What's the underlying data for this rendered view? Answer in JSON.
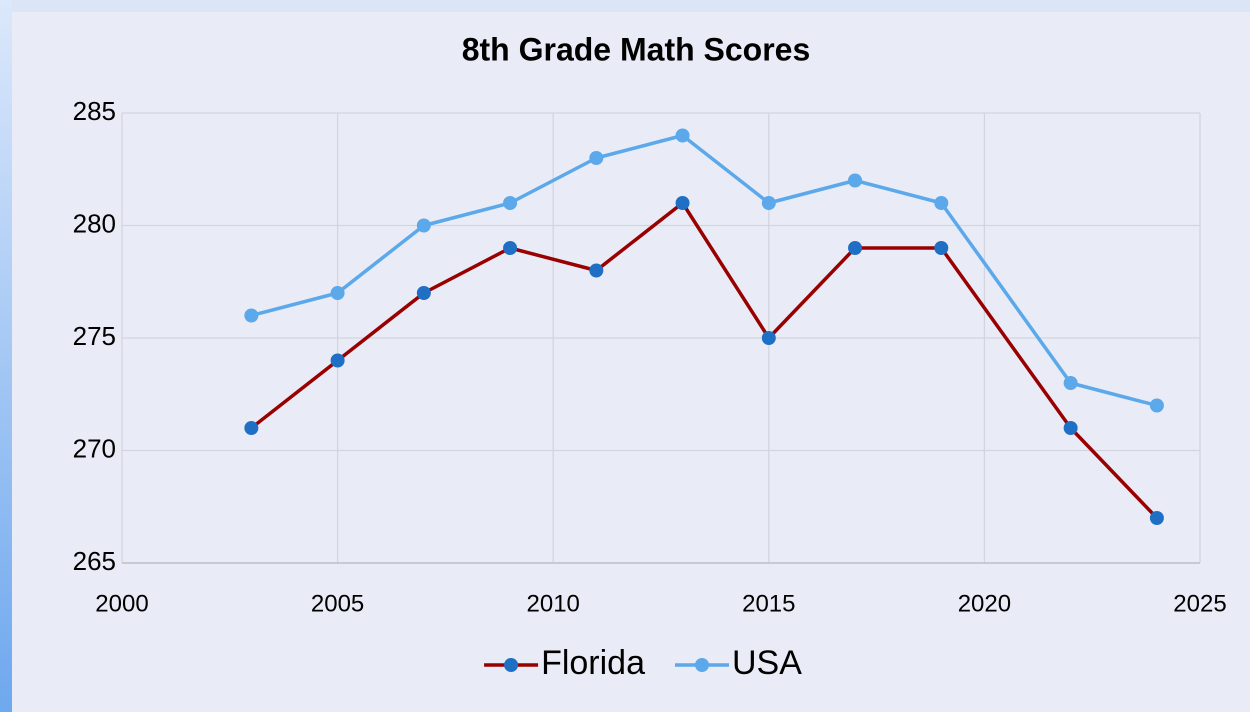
{
  "chart_data": {
    "type": "line",
    "title": "8th Grade Math Scores",
    "x": [
      2003,
      2005,
      2007,
      2009,
      2011,
      2013,
      2015,
      2017,
      2019,
      2022,
      2024
    ],
    "series": [
      {
        "name": "Florida",
        "color": "#990000",
        "marker_color": "#1f6fc5",
        "values": [
          271,
          274,
          277,
          279,
          278,
          281,
          275,
          279,
          279,
          271,
          267
        ]
      },
      {
        "name": "USA",
        "color": "#5ba8ea",
        "marker_color": "#5ba8ea",
        "values": [
          276,
          277,
          280,
          281,
          283,
          284,
          281,
          282,
          281,
          273,
          272
        ]
      }
    ],
    "xlim": [
      2000,
      2025
    ],
    "xticks": [
      2000,
      2005,
      2010,
      2015,
      2020,
      2025
    ],
    "ylim": [
      265,
      285
    ],
    "yticks": [
      265,
      270,
      275,
      280,
      285
    ],
    "grid": true,
    "legend": "bottom"
  }
}
